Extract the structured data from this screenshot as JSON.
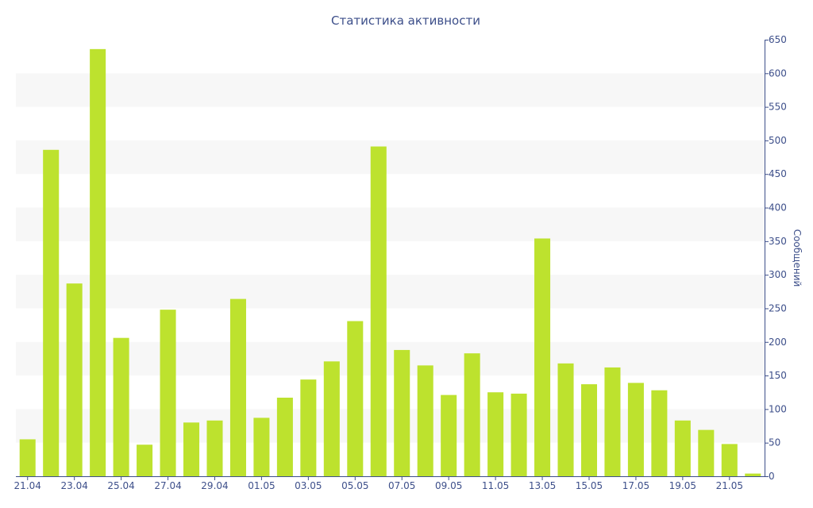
{
  "chart_data": {
    "type": "bar",
    "title": "Статистика активности",
    "xlabel": "",
    "ylabel": "Сообщений",
    "ylim": [
      0,
      650
    ],
    "yticks": [
      0,
      50,
      100,
      150,
      200,
      250,
      300,
      350,
      400,
      450,
      500,
      550,
      600,
      650
    ],
    "y_axis_side": "right",
    "grid": "alternating horizontal bands",
    "categories": [
      "21.04",
      "22.04",
      "23.04",
      "24.04",
      "25.04",
      "26.04",
      "27.04",
      "28.04",
      "29.04",
      "30.04",
      "01.05",
      "02.05",
      "03.05",
      "04.05",
      "05.05",
      "06.05",
      "07.05",
      "08.05",
      "09.05",
      "10.05",
      "11.05",
      "12.05",
      "13.05",
      "14.05",
      "15.05",
      "16.05",
      "17.05",
      "18.05",
      "19.05",
      "20.05",
      "21.05",
      "22.05"
    ],
    "xtick_labels": [
      "21.04",
      "23.04",
      "25.04",
      "27.04",
      "29.04",
      "01.05",
      "03.05",
      "05.05",
      "07.05",
      "09.05",
      "11.05",
      "13.05",
      "15.05",
      "17.05",
      "19.05",
      "21.05"
    ],
    "values": [
      55,
      486,
      287,
      636,
      206,
      47,
      248,
      80,
      83,
      264,
      87,
      117,
      144,
      171,
      231,
      491,
      188,
      165,
      121,
      183,
      125,
      123,
      354,
      168,
      137,
      162,
      139,
      128,
      83,
      69,
      48,
      4
    ],
    "colors": {
      "bar": "#bde22e",
      "axis": "#3d4f8a",
      "band": "#f7f7f7"
    }
  }
}
